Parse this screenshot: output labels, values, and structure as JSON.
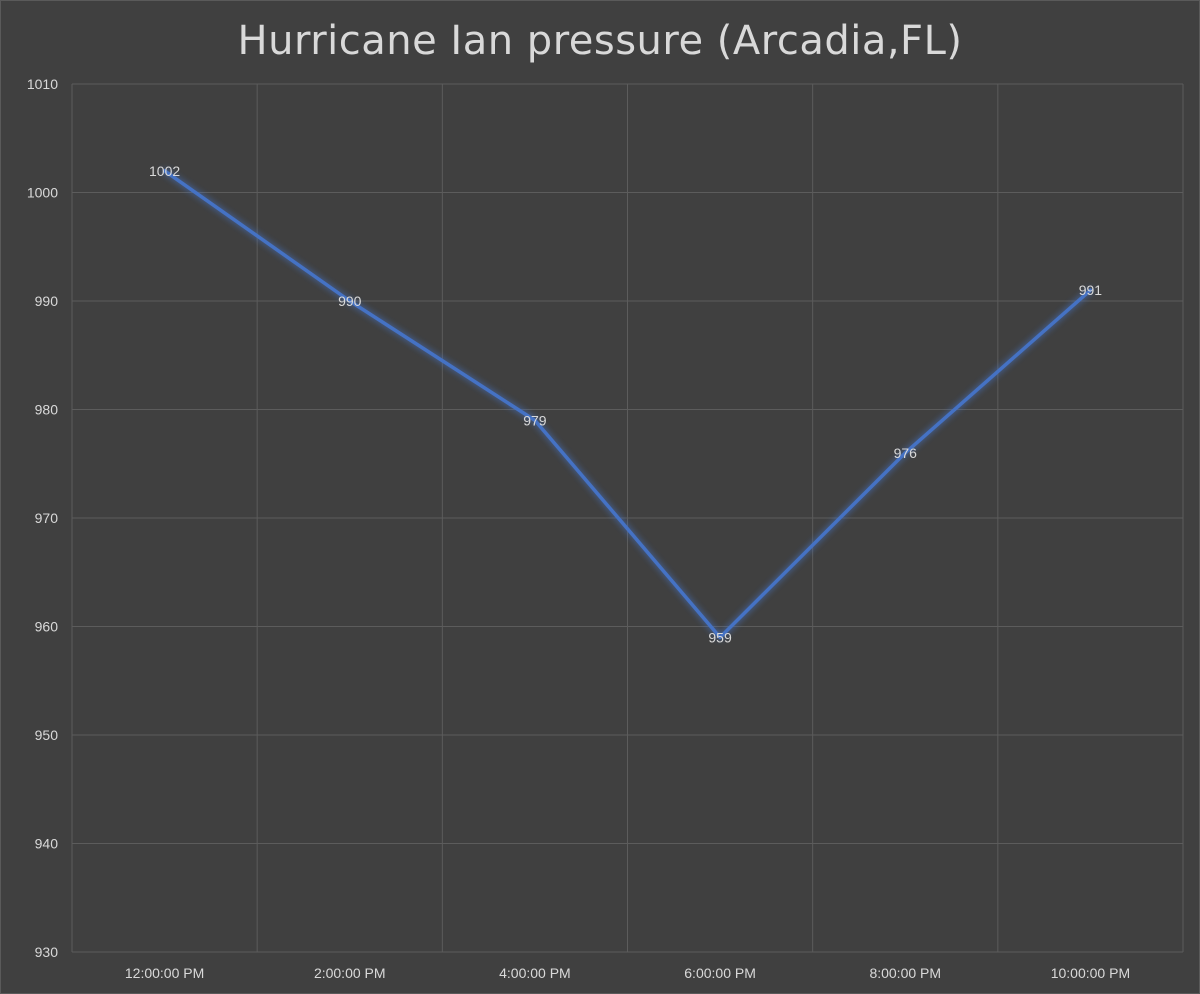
{
  "chart_data": {
    "type": "line",
    "title": "Hurricane Ian pressure (Arcadia,FL)",
    "xlabel": "",
    "ylabel": "",
    "categories": [
      "12:00:00 PM",
      "2:00:00 PM",
      "4:00:00 PM",
      "6:00:00 PM",
      "8:00:00 PM",
      "10:00:00 PM"
    ],
    "series": [
      {
        "values": [
          1002,
          990,
          979,
          959,
          976,
          991
        ],
        "color": "#4472c4"
      }
    ],
    "ylim": [
      930,
      1010
    ],
    "yticks": [
      930,
      940,
      950,
      960,
      970,
      980,
      990,
      1000,
      1010
    ],
    "data_labels": true,
    "grid": true,
    "legend": "none"
  },
  "colors": {
    "background": "#404040",
    "gridline": "#5c5c5c",
    "text": "#d9d9d9",
    "line": "#4472c4"
  }
}
